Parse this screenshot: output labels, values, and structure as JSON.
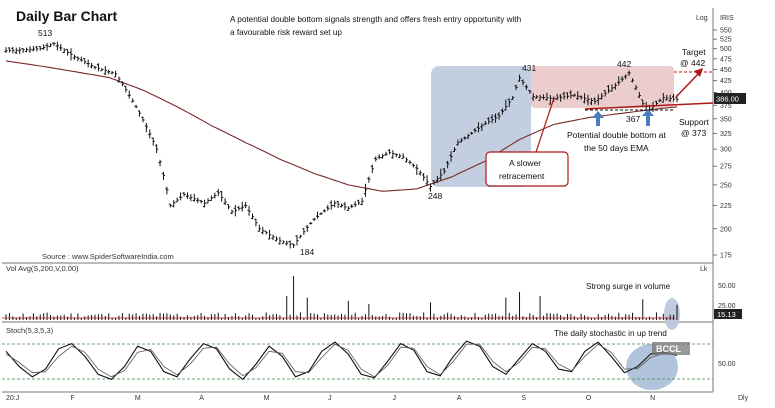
{
  "header": {
    "title": "Daily Bar Chart",
    "annotation_line1": "A potential double bottom signals strength and offers fresh entry opportunity with",
    "annotation_line2": "a favourable risk reward set up",
    "scale_mode": "Log",
    "symbol": "IRIS"
  },
  "source": "Source : www.SpiderSoftwareIndia.com",
  "watermark": "BCCL",
  "colors": {
    "bar": "#111111",
    "ema": "#7a2a2a",
    "resistance_zone": "#e8c4c4",
    "base_zone": "#b8c7da",
    "arrow_blue": "#4a7ec0",
    "arrow_red": "#b01818",
    "grid_green": "#3a8a3a",
    "price_tag": "#222222"
  },
  "chart_data": [
    {
      "type": "ohlc",
      "panel": "price",
      "scale": "log",
      "ylim": [
        170,
        560
      ],
      "y_ticks": [
        175,
        200,
        225,
        250,
        275,
        300,
        325,
        350,
        375,
        400,
        425,
        450,
        475,
        500,
        525,
        550
      ],
      "x_tick_labels": [
        "20:J",
        "F",
        "M",
        "A",
        "M",
        "J",
        "J",
        "A",
        "S",
        "O",
        "N",
        "Dly"
      ],
      "last_price": "386.00",
      "anchors": [
        {
          "t": 0,
          "v": 495
        },
        {
          "t": 10,
          "v": 500
        },
        {
          "t": 14,
          "v": 513
        },
        {
          "t": 20,
          "v": 480
        },
        {
          "t": 26,
          "v": 455
        },
        {
          "t": 32,
          "v": 440
        },
        {
          "t": 38,
          "v": 372
        },
        {
          "t": 44,
          "v": 300
        },
        {
          "t": 48,
          "v": 225
        },
        {
          "t": 52,
          "v": 238
        },
        {
          "t": 58,
          "v": 228
        },
        {
          "t": 62,
          "v": 240
        },
        {
          "t": 66,
          "v": 218
        },
        {
          "t": 70,
          "v": 225
        },
        {
          "t": 74,
          "v": 200
        },
        {
          "t": 80,
          "v": 188
        },
        {
          "t": 84,
          "v": 184
        },
        {
          "t": 90,
          "v": 210
        },
        {
          "t": 96,
          "v": 228
        },
        {
          "t": 100,
          "v": 222
        },
        {
          "t": 104,
          "v": 230
        },
        {
          "t": 108,
          "v": 285
        },
        {
          "t": 112,
          "v": 295
        },
        {
          "t": 116,
          "v": 288
        },
        {
          "t": 120,
          "v": 272
        },
        {
          "t": 124,
          "v": 248
        },
        {
          "t": 128,
          "v": 268
        },
        {
          "t": 132,
          "v": 310
        },
        {
          "t": 136,
          "v": 325
        },
        {
          "t": 140,
          "v": 342
        },
        {
          "t": 144,
          "v": 355
        },
        {
          "t": 148,
          "v": 390
        },
        {
          "t": 150,
          "v": 431
        },
        {
          "t": 154,
          "v": 392
        },
        {
          "t": 160,
          "v": 388
        },
        {
          "t": 166,
          "v": 395
        },
        {
          "t": 172,
          "v": 382
        },
        {
          "t": 178,
          "v": 415
        },
        {
          "t": 182,
          "v": 442
        },
        {
          "t": 186,
          "v": 378
        },
        {
          "t": 188,
          "v": 367
        },
        {
          "t": 192,
          "v": 390
        },
        {
          "t": 196,
          "v": 386
        }
      ],
      "ema_anchors": [
        {
          "t": 0,
          "v": 470
        },
        {
          "t": 10,
          "v": 458
        },
        {
          "t": 20,
          "v": 445
        },
        {
          "t": 30,
          "v": 432
        },
        {
          "t": 40,
          "v": 405
        },
        {
          "t": 50,
          "v": 372
        },
        {
          "t": 60,
          "v": 338
        },
        {
          "t": 70,
          "v": 310
        },
        {
          "t": 80,
          "v": 285
        },
        {
          "t": 90,
          "v": 265
        },
        {
          "t": 100,
          "v": 250
        },
        {
          "t": 110,
          "v": 242
        },
        {
          "t": 120,
          "v": 245
        },
        {
          "t": 130,
          "v": 260
        },
        {
          "t": 140,
          "v": 282
        },
        {
          "t": 150,
          "v": 315
        },
        {
          "t": 160,
          "v": 340
        },
        {
          "t": 170,
          "v": 352
        },
        {
          "t": 180,
          "v": 360
        },
        {
          "t": 190,
          "v": 368
        },
        {
          "t": 196,
          "v": 372
        }
      ],
      "annotations": {
        "label_513": "513",
        "label_184": "184",
        "label_248": "248",
        "label_431": "431",
        "label_442": "442",
        "label_367": "367",
        "target_line1": "Target",
        "target_line2": "@ 442",
        "support_line1": "Support",
        "support_line2": "@ 373",
        "double_bottom_line1": "Potential double bottom at",
        "double_bottom_line2": "the 50 days EMA",
        "retracement_line1": "A slower",
        "retracement_line2": "retracement"
      }
    },
    {
      "type": "bar",
      "panel": "volume",
      "label": "Vol  Avg(S,200,V,0.00)",
      "unit_label": "Lk",
      "y_ticks": [
        25.0,
        50.0
      ],
      "y_tick_labels": [
        "25.00",
        "50.00"
      ],
      "last_value": "15.13",
      "note": "Strong surge in volume",
      "spikes": [
        {
          "t": 84,
          "v": 55
        },
        {
          "t": 82,
          "v": 30
        },
        {
          "t": 88,
          "v": 28
        },
        {
          "t": 100,
          "v": 24
        },
        {
          "t": 106,
          "v": 20
        },
        {
          "t": 150,
          "v": 35
        },
        {
          "t": 146,
          "v": 28
        },
        {
          "t": 156,
          "v": 30
        },
        {
          "t": 124,
          "v": 22
        },
        {
          "t": 186,
          "v": 26
        },
        {
          "t": 196,
          "v": 19
        }
      ],
      "base_volume": 6
    },
    {
      "type": "line",
      "panel": "stochastic",
      "label": "Stoch(5,3,5,3)",
      "y_ticks": [
        50.0
      ],
      "y_tick_labels": [
        "50.00"
      ],
      "upper_level": 80,
      "lower_level": 20,
      "note": "The daily stochastic in up trend",
      "series": [
        {
          "name": "%K",
          "values": [
            70,
            40,
            20,
            35,
            75,
            85,
            60,
            25,
            15,
            40,
            80,
            70,
            30,
            20,
            55,
            85,
            75,
            35,
            15,
            45,
            80,
            60,
            20,
            30,
            70,
            88,
            65,
            25,
            18,
            50,
            85,
            72,
            30,
            22,
            60,
            90,
            80,
            40,
            25,
            55,
            85,
            70,
            35,
            30,
            70,
            88,
            60,
            28,
            40,
            65,
            68,
            62
          ]
        },
        {
          "name": "%D",
          "values": [
            65,
            48,
            28,
            30,
            60,
            80,
            68,
            35,
            20,
            32,
            68,
            74,
            40,
            24,
            45,
            76,
            78,
            45,
            22,
            38,
            70,
            66,
            30,
            28,
            58,
            84,
            72,
            35,
            20,
            42,
            78,
            76,
            40,
            24,
            50,
            84,
            84,
            50,
            30,
            48,
            78,
            75,
            45,
            32,
            60,
            84,
            68,
            35,
            36,
            58,
            66,
            64
          ]
        }
      ]
    }
  ]
}
